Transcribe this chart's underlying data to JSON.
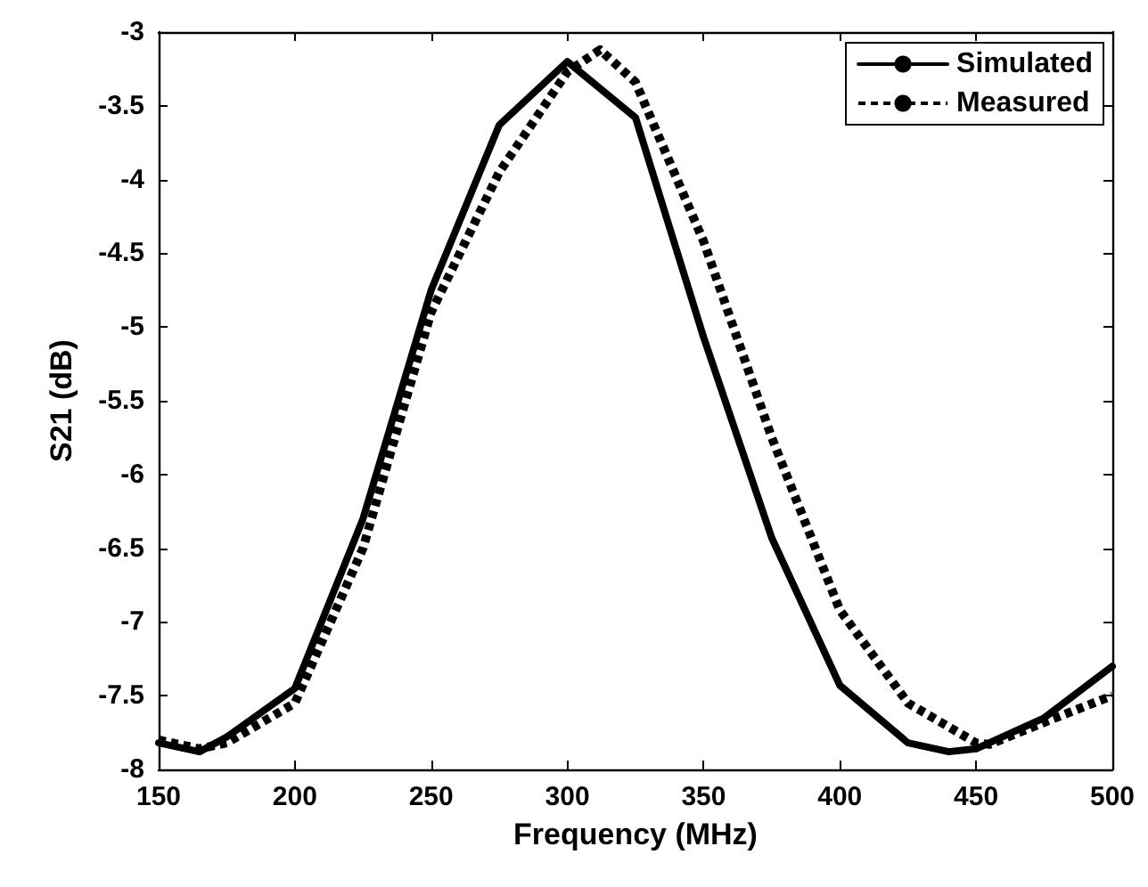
{
  "chart_data": {
    "type": "line",
    "xlabel": "Frequency (MHz)",
    "ylabel": "S21 (dB)",
    "xlim": [
      150,
      500
    ],
    "xticks": [
      150,
      200,
      250,
      300,
      350,
      400,
      450,
      500
    ],
    "ylim": [
      -8,
      -3
    ],
    "yticks": [
      -8,
      -7.5,
      -7,
      -6.5,
      -6,
      -5.5,
      -5,
      -4.5,
      -4,
      -3.5,
      -3
    ],
    "grid": false,
    "legend": "top right",
    "marker": "none",
    "series": [
      {
        "name": "Simulated",
        "color": "#000000",
        "line_style": "solid",
        "x": [
          150,
          165,
          175,
          200,
          225,
          250,
          275,
          300,
          325,
          350,
          375,
          400,
          425,
          440,
          450,
          475,
          500
        ],
        "values": [
          -7.82,
          -7.88,
          -7.78,
          -7.45,
          -6.3,
          -4.75,
          -3.63,
          -3.2,
          -3.58,
          -5.07,
          -6.43,
          -7.43,
          -7.82,
          -7.88,
          -7.86,
          -7.65,
          -7.3
        ]
      },
      {
        "name": "Measured",
        "color": "#000000",
        "line_style": "dotted",
        "x": [
          150,
          165,
          175,
          200,
          225,
          250,
          275,
          300,
          312,
          325,
          350,
          375,
          400,
          425,
          450,
          455,
          475,
          500
        ],
        "values": [
          -7.8,
          -7.86,
          -7.82,
          -7.55,
          -6.5,
          -4.9,
          -3.95,
          -3.27,
          -3.12,
          -3.34,
          -4.42,
          -5.75,
          -6.92,
          -7.55,
          -7.82,
          -7.83,
          -7.68,
          -7.5
        ]
      }
    ]
  }
}
